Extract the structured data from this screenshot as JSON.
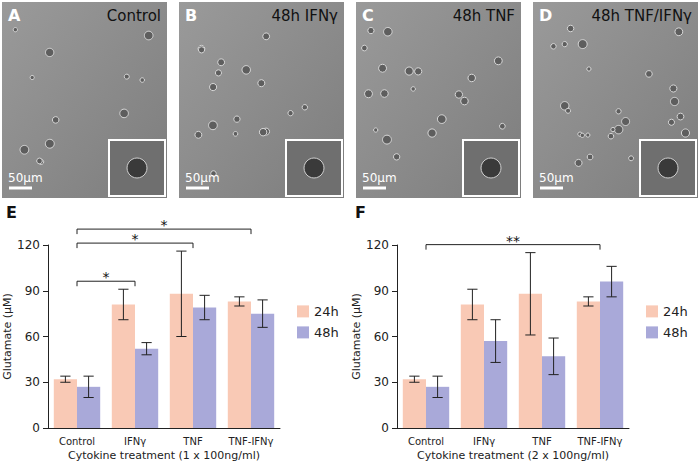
{
  "image_panels": [
    {
      "label": "A",
      "caption": "Control",
      "scale_bar": "50μm"
    },
    {
      "label": "B",
      "caption": "48h IFNγ",
      "scale_bar": "50μm"
    },
    {
      "label": "C",
      "caption": "48h TNF",
      "scale_bar": "50μm"
    },
    {
      "label": "D",
      "caption": "48h TNF/IFNγ",
      "scale_bar": "50μm"
    }
  ],
  "chart_data": [
    {
      "type": "bar",
      "panel": "E",
      "xlabel": "Cytokine treatment (1 x 100ng/ml)",
      "ylabel": "Glutamate (μM)",
      "categories": [
        "Control",
        "IFNγ",
        "TNF",
        "TNF-IFNγ"
      ],
      "series": [
        {
          "name": "24h",
          "color": "#f9c9b5",
          "values": [
            32,
            81,
            88,
            83
          ],
          "errors": [
            2,
            10,
            28,
            3
          ]
        },
        {
          "name": "48h",
          "color": "#a9a9d9",
          "values": [
            27,
            52,
            79,
            75
          ],
          "errors": [
            7,
            4,
            8,
            9
          ]
        }
      ],
      "ylim": [
        0,
        120
      ],
      "yticks": [
        0,
        30,
        60,
        90,
        120
      ],
      "grid": false,
      "legend": "right",
      "annotations": [
        {
          "from": "Control",
          "to": "IFNγ",
          "text": "*"
        },
        {
          "from": "Control",
          "to": "TNF",
          "text": "*"
        },
        {
          "from": "Control",
          "to": "TNF-IFNγ",
          "text": "*"
        }
      ]
    },
    {
      "type": "bar",
      "panel": "F",
      "xlabel": "Cytokine treatment (2 x 100ng/ml)",
      "ylabel": "Glutamate (μM)",
      "categories": [
        "Control",
        "IFNγ",
        "TNF",
        "TNF-IFNγ"
      ],
      "series": [
        {
          "name": "24h",
          "color": "#f9c9b5",
          "values": [
            32,
            81,
            88,
            83
          ],
          "errors": [
            2,
            10,
            27,
            3
          ]
        },
        {
          "name": "48h",
          "color": "#a9a9d9",
          "values": [
            27,
            57,
            47,
            96
          ],
          "errors": [
            7,
            14,
            12,
            10
          ]
        }
      ],
      "ylim": [
        0,
        120
      ],
      "yticks": [
        0,
        30,
        60,
        90,
        120
      ],
      "grid": false,
      "legend": "right",
      "annotations": [
        {
          "from": "Control",
          "to": "TNF-IFNγ",
          "text": "**"
        }
      ]
    }
  ]
}
